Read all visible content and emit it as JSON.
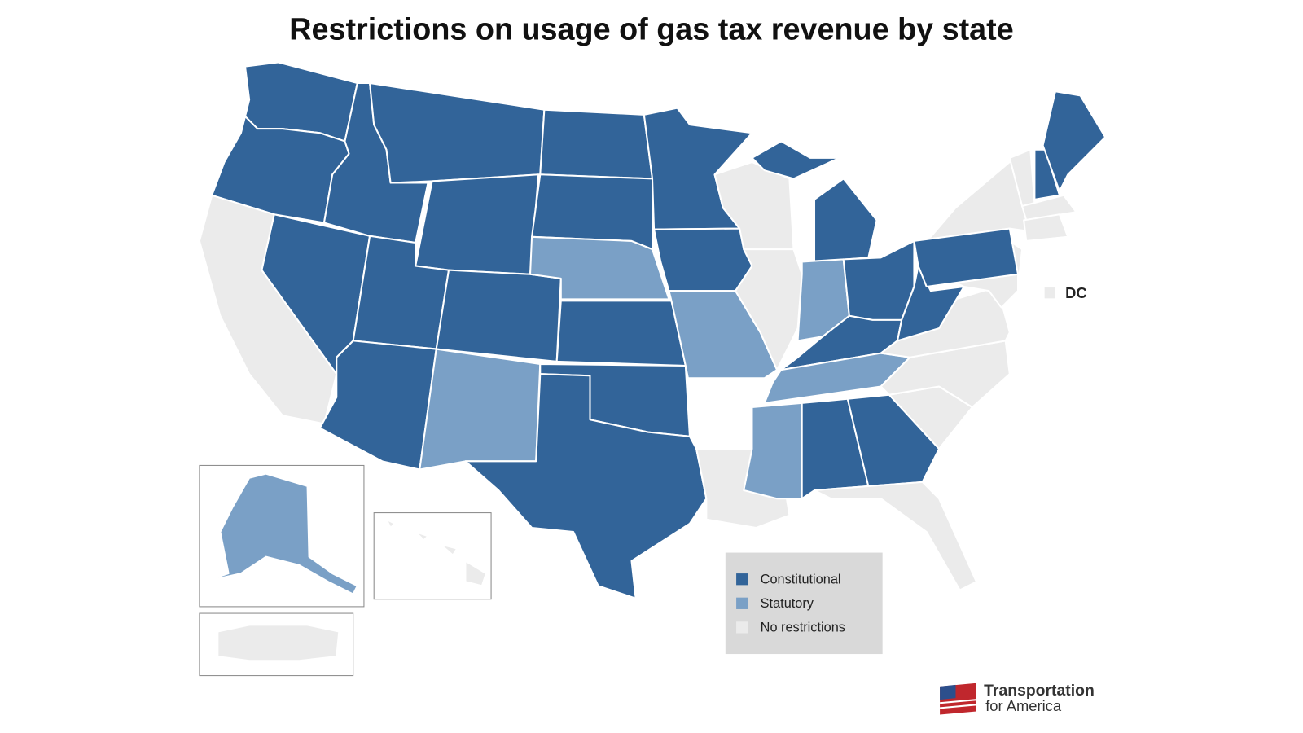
{
  "title": "Restrictions on usage of gas tax revenue by state",
  "legend": [
    {
      "label": "Constitutional",
      "color": "#326499"
    },
    {
      "label": "Statutory",
      "color": "#7aa0c6"
    },
    {
      "label": "No restrictions",
      "color": "#ebebeb"
    }
  ],
  "regions": [
    {
      "status": "Constitutional"
    },
    {
      "status": "Constitutional"
    },
    {
      "status": "No restrictions"
    },
    {
      "status": "Constitutional"
    },
    {
      "status": "Constitutional"
    },
    {
      "status": "Constitutional"
    },
    {
      "status": "Constitutional"
    },
    {
      "status": "Constitutional"
    },
    {
      "status": "Constitutional"
    },
    {
      "status": "Constitutional"
    },
    {
      "status": "Statutory"
    },
    {
      "status": "Constitutional"
    },
    {
      "status": "Constitutional"
    },
    {
      "status": "Statutory"
    },
    {
      "status": "Constitutional"
    },
    {
      "status": "Constitutional"
    },
    {
      "status": "Constitutional"
    },
    {
      "status": "Constitutional"
    },
    {
      "status": "Constitutional"
    },
    {
      "status": "Statutory"
    },
    {
      "status": "No restrictions"
    },
    {
      "status": "No restrictions"
    },
    {
      "status": "No restrictions"
    },
    {
      "status": "Constitutional"
    },
    {
      "status": "Constitutional"
    },
    {
      "status": "Statutory"
    },
    {
      "status": "Constitutional"
    },
    {
      "status": "Constitutional"
    },
    {
      "status": "Statutory"
    },
    {
      "status": "Statutory"
    },
    {
      "status": "Constitutional"
    },
    {
      "status": "Constitutional"
    },
    {
      "status": "No restrictions"
    },
    {
      "status": "No restrictions"
    },
    {
      "status": "No restrictions"
    },
    {
      "status": "No restrictions"
    },
    {
      "status": "Constitutional"
    },
    {
      "status": "No restrictions"
    },
    {
      "status": "No restrictions"
    },
    {
      "status": "No restrictions"
    },
    {
      "status": "No restrictions"
    },
    {
      "status": "Constitutional"
    },
    {
      "status": "Constitutional"
    },
    {
      "status": "No restrictions"
    },
    {
      "status": "No restrictions"
    },
    {
      "status": "Constitutional"
    },
    {
      "status": "Statutory"
    },
    {
      "status": "No restrictions"
    },
    {
      "status": "No restrictions"
    }
  ],
  "dc": {
    "label": "DC",
    "status": "No restrictions"
  },
  "logo": {
    "line1": "Transportation",
    "line2": "for America"
  }
}
